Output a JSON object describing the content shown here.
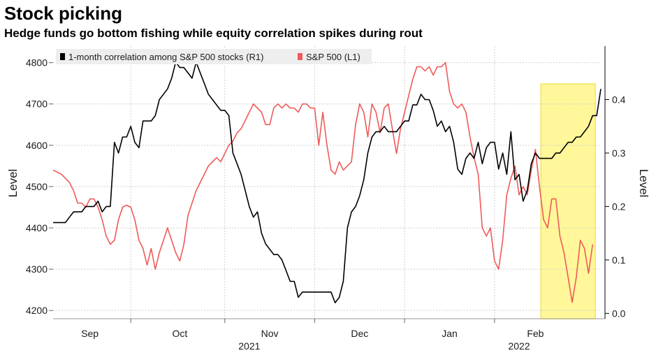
{
  "chart_data": {
    "type": "line",
    "title": "Stock picking",
    "subtitle": "Hedge funds go bottom fishing while equity correlation spikes during rout",
    "ylabel_left": "Level",
    "ylabel_right": "Level",
    "ylim_left": [
      4180,
      4840
    ],
    "ylim_right": [
      -0.01,
      0.5
    ],
    "yticks_left": [
      "4200",
      "4300",
      "4400",
      "4500",
      "4600",
      "4700",
      "4800"
    ],
    "yticks_right": [
      "0.0",
      "0.1",
      "0.2",
      "0.3",
      "0.4"
    ],
    "xticks": [
      "Sep",
      "Oct",
      "Nov",
      "Dec",
      "Jan",
      "Feb"
    ],
    "year_labels": [
      "2021",
      "2022"
    ],
    "legend": [
      "1-month correlation among S&P 500 stocks (R1)",
      "S&P 500 (L1)"
    ],
    "colors": {
      "correlation": "#000000",
      "sp500": "#ef5a5a",
      "highlight_fill": "#fff799",
      "highlight_stroke": "#f2e45a",
      "grid": "#cfcfcf"
    },
    "highlight": {
      "from": 119,
      "to": 133
    },
    "series": [
      {
        "name": "1-month correlation among S&P 500 stocks (R1)",
        "axis": "right",
        "values": [
          0.17,
          0.17,
          0.17,
          0.17,
          0.18,
          0.19,
          0.19,
          0.19,
          0.2,
          0.2,
          0.2,
          0.21,
          0.19,
          0.2,
          0.2,
          0.32,
          0.3,
          0.33,
          0.33,
          0.35,
          0.32,
          0.31,
          0.36,
          0.36,
          0.36,
          0.37,
          0.4,
          0.41,
          0.42,
          0.44,
          0.47,
          0.46,
          0.46,
          0.45,
          0.44,
          0.47,
          0.45,
          0.43,
          0.41,
          0.4,
          0.39,
          0.38,
          0.38,
          0.37,
          0.3,
          0.28,
          0.26,
          0.23,
          0.2,
          0.18,
          0.19,
          0.15,
          0.13,
          0.12,
          0.11,
          0.11,
          0.1,
          0.08,
          0.06,
          0.06,
          0.03,
          0.04,
          0.04,
          0.04,
          0.04,
          0.04,
          0.04,
          0.04,
          0.04,
          0.02,
          0.03,
          0.06,
          0.16,
          0.19,
          0.2,
          0.22,
          0.25,
          0.3,
          0.33,
          0.34,
          0.34,
          0.35,
          0.34,
          0.34,
          0.34,
          0.35,
          0.36,
          0.36,
          0.39,
          0.39,
          0.41,
          0.4,
          0.4,
          0.38,
          0.35,
          0.36,
          0.34,
          0.35,
          0.32,
          0.27,
          0.26,
          0.29,
          0.3,
          0.29,
          0.32,
          0.28,
          0.31,
          0.32,
          0.32,
          0.27,
          0.3,
          0.26,
          0.34,
          0.25,
          0.26,
          0.21,
          0.23,
          0.28,
          0.3,
          0.29,
          0.29,
          0.29,
          0.29,
          0.3,
          0.3,
          0.31,
          0.32,
          0.32,
          0.33,
          0.33,
          0.34,
          0.35,
          0.37,
          0.37,
          0.42
        ]
      },
      {
        "name": "S&P 500 (L1)",
        "axis": "left",
        "values": [
          4540,
          4535,
          4530,
          4520,
          4510,
          4490,
          4460,
          4460,
          4450,
          4470,
          4470,
          4450,
          4420,
          4380,
          4360,
          4370,
          4420,
          4450,
          4455,
          4450,
          4420,
          4370,
          4350,
          4310,
          4350,
          4300,
          4340,
          4370,
          4400,
          4370,
          4340,
          4320,
          4360,
          4430,
          4460,
          4490,
          4510,
          4530,
          4550,
          4560,
          4570,
          4560,
          4580,
          4600,
          4610,
          4630,
          4640,
          4660,
          4680,
          4700,
          4690,
          4680,
          4650,
          4650,
          4690,
          4700,
          4690,
          4700,
          4690,
          4690,
          4680,
          4700,
          4700,
          4690,
          4690,
          4600,
          4680,
          4600,
          4540,
          4530,
          4560,
          4540,
          4550,
          4560,
          4650,
          4700,
          4680,
          4620,
          4700,
          4680,
          4630,
          4690,
          4700,
          4640,
          4580,
          4640,
          4680,
          4720,
          4760,
          4790,
          4790,
          4780,
          4790,
          4770,
          4790,
          4790,
          4800,
          4730,
          4700,
          4690,
          4700,
          4680,
          4620,
          4570,
          4530,
          4400,
          4380,
          4400,
          4320,
          4300,
          4370,
          4480,
          4520,
          4550,
          4480,
          4500,
          4480,
          4540,
          4590,
          4500,
          4420,
          4400,
          4470,
          4470,
          4380,
          4340,
          4280,
          4220,
          4280,
          4370,
          4350,
          4290,
          4360
        ]
      }
    ]
  }
}
